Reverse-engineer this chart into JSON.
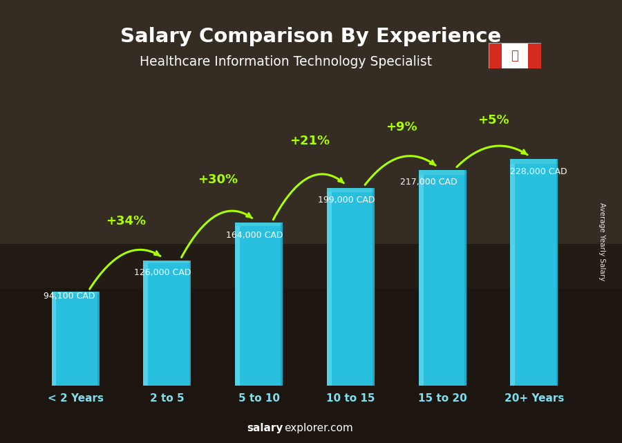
{
  "title": "Salary Comparison By Experience",
  "subtitle": "Healthcare Information Technology Specialist",
  "categories": [
    "< 2 Years",
    "2 to 5",
    "5 to 10",
    "10 to 15",
    "15 to 20",
    "20+ Years"
  ],
  "values": [
    94100,
    126000,
    164000,
    199000,
    217000,
    228000
  ],
  "labels": [
    "94,100 CAD",
    "126,000 CAD",
    "164,000 CAD",
    "199,000 CAD",
    "217,000 CAD",
    "228,000 CAD"
  ],
  "pct_changes": [
    "+34%",
    "+30%",
    "+21%",
    "+9%",
    "+5%"
  ],
  "bar_color_main": "#29c0df",
  "bar_color_light": "#60d8f0",
  "bar_color_dark": "#1a9ab8",
  "bar_color_top": "#45cce0",
  "pct_color": "#aaff00",
  "label_color": "#ffffff",
  "title_color": "#ffffff",
  "subtitle_color": "#ffffff",
  "ylabel": "Average Yearly Salary",
  "footer_bold": "salary",
  "footer_normal": "explorer.com",
  "bg_color": "#3a3020",
  "ylim": [
    0,
    290000
  ],
  "bar_width": 0.52
}
